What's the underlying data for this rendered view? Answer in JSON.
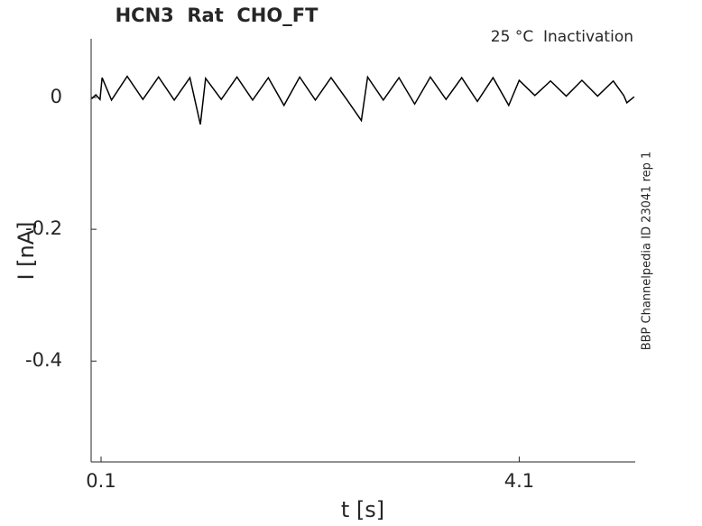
{
  "chart_data": {
    "type": "line",
    "title": "HCN3  Rat  CHO_FT",
    "annotation": "25 °C  Inactivation",
    "side_label": "BBP Channelpedia ID 23041 rep 1",
    "x_label": "t [s]",
    "y_label": "I [nA]",
    "x": [
      0.01,
      0.05,
      0.09,
      0.11,
      0.2,
      0.35,
      0.5,
      0.65,
      0.8,
      0.95,
      1.05,
      1.1,
      1.25,
      1.4,
      1.55,
      1.7,
      1.85,
      2.0,
      2.15,
      2.3,
      2.45,
      2.59,
      2.65,
      2.8,
      2.95,
      3.1,
      3.25,
      3.4,
      3.55,
      3.7,
      3.85,
      4.0,
      4.1,
      4.25,
      4.4,
      4.55,
      4.7,
      4.85,
      5.0,
      5.1,
      5.13,
      5.2
    ],
    "series": [
      {
        "color": "#000000",
        "values": [
          -0.002,
          0.004,
          -0.003,
          0.03,
          -0.004,
          0.032,
          -0.003,
          0.031,
          -0.004,
          0.03,
          -0.041,
          0.029,
          -0.003,
          0.031,
          -0.004,
          0.03,
          -0.012,
          0.031,
          -0.004,
          0.03,
          -0.003,
          -0.035,
          0.031,
          -0.004,
          0.03,
          -0.01,
          0.031,
          -0.003,
          0.03,
          -0.006,
          0.03,
          -0.012,
          0.026,
          0.003,
          0.025,
          0.002,
          0.026,
          0.002,
          0.025,
          0.003,
          -0.008,
          0.001
        ]
      }
    ],
    "xlim": [
      0.005,
      5.21
    ],
    "ylim": [
      -0.553,
      0.089
    ],
    "xticks": [
      0.1,
      4.1
    ],
    "yticks": [
      0,
      -0.2,
      -0.4
    ]
  }
}
